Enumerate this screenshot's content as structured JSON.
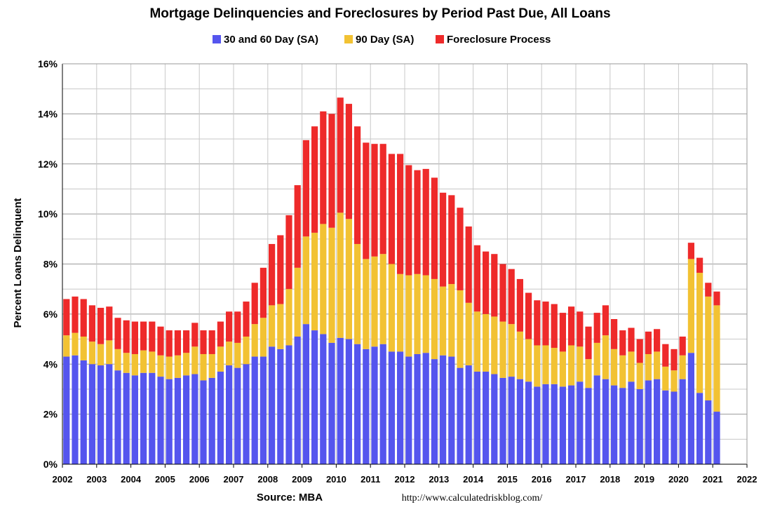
{
  "chart_data": {
    "type": "bar",
    "stacked": true,
    "title": "Mortgage Delinquencies and Foreclosures by Period Past Due, All Loans",
    "ylabel": "Percent Loans Delinquent",
    "xlabel": "",
    "source_label": "Source: MBA",
    "url": "http://www.calculatedriskblog.com/",
    "ylim": [
      0,
      16
    ],
    "xlim": [
      2002,
      2022
    ],
    "y_ticks": [
      "0%",
      "2%",
      "4%",
      "6%",
      "8%",
      "10%",
      "12%",
      "14%",
      "16%"
    ],
    "x_ticks": [
      "2002",
      "2003",
      "2004",
      "2005",
      "2006",
      "2007",
      "2008",
      "2009",
      "2010",
      "2011",
      "2012",
      "2013",
      "2014",
      "2015",
      "2016",
      "2017",
      "2018",
      "2019",
      "2020",
      "2021",
      "2022"
    ],
    "legend_position": "top-center",
    "grid": true,
    "x": [
      2002.0,
      2002.25,
      2002.5,
      2002.75,
      2003.0,
      2003.25,
      2003.5,
      2003.75,
      2004.0,
      2004.25,
      2004.5,
      2004.75,
      2005.0,
      2005.25,
      2005.5,
      2005.75,
      2006.0,
      2006.25,
      2006.5,
      2006.75,
      2007.0,
      2007.25,
      2007.5,
      2007.75,
      2008.0,
      2008.25,
      2008.5,
      2008.75,
      2009.0,
      2009.25,
      2009.5,
      2009.75,
      2010.0,
      2010.25,
      2010.5,
      2010.75,
      2011.0,
      2011.25,
      2011.5,
      2011.75,
      2012.0,
      2012.25,
      2012.5,
      2012.75,
      2013.0,
      2013.25,
      2013.5,
      2013.75,
      2014.0,
      2014.25,
      2014.5,
      2014.75,
      2015.0,
      2015.25,
      2015.5,
      2015.75,
      2016.0,
      2016.25,
      2016.5,
      2016.75,
      2017.0,
      2017.25,
      2017.5,
      2017.75,
      2018.0,
      2018.25,
      2018.5,
      2018.75,
      2019.0,
      2019.25,
      2019.5,
      2019.75,
      2020.0,
      2020.25,
      2020.5,
      2020.75,
      2021.0
    ],
    "series": [
      {
        "name": "30 and 60 Day (SA)",
        "color": "#5555ee",
        "values": [
          4.3,
          4.35,
          4.15,
          4.0,
          3.95,
          4.0,
          3.75,
          3.65,
          3.55,
          3.65,
          3.65,
          3.5,
          3.4,
          3.45,
          3.55,
          3.6,
          3.35,
          3.45,
          3.7,
          3.95,
          3.85,
          4.0,
          4.3,
          4.3,
          4.7,
          4.6,
          4.75,
          5.1,
          5.6,
          5.35,
          5.2,
          4.85,
          5.05,
          5.0,
          4.8,
          4.6,
          4.7,
          4.8,
          4.5,
          4.5,
          4.3,
          4.4,
          4.45,
          4.2,
          4.35,
          4.3,
          3.85,
          3.95,
          3.7,
          3.7,
          3.6,
          3.45,
          3.5,
          3.4,
          3.3,
          3.1,
          3.2,
          3.2,
          3.1,
          3.15,
          3.3,
          3.05,
          3.55,
          3.4,
          3.15,
          3.05,
          3.3,
          3.0,
          3.35,
          3.4,
          2.95,
          2.9,
          3.4,
          4.45,
          2.85,
          2.55,
          2.1
        ]
      },
      {
        "name": "90 Day (SA)",
        "color": "#f2c233",
        "values": [
          0.85,
          0.9,
          0.95,
          0.9,
          0.85,
          0.95,
          0.85,
          0.8,
          0.85,
          0.9,
          0.85,
          0.85,
          0.9,
          0.9,
          0.9,
          1.1,
          1.05,
          0.95,
          1.0,
          0.95,
          1.0,
          1.1,
          1.3,
          1.55,
          1.65,
          1.8,
          2.25,
          2.75,
          3.5,
          3.9,
          4.4,
          4.6,
          5.0,
          4.8,
          4.0,
          3.6,
          3.6,
          3.6,
          3.5,
          3.1,
          3.25,
          3.2,
          3.1,
          3.2,
          2.75,
          2.9,
          3.1,
          2.5,
          2.4,
          2.3,
          2.3,
          2.25,
          2.1,
          1.9,
          1.7,
          1.65,
          1.55,
          1.45,
          1.4,
          1.6,
          1.4,
          1.15,
          1.3,
          1.75,
          1.45,
          1.3,
          1.2,
          1.05,
          1.05,
          1.1,
          0.95,
          0.85,
          0.95,
          3.75,
          4.8,
          4.15,
          4.25
        ]
      },
      {
        "name": "Foreclosure Process",
        "color": "#ee2a2a",
        "values": [
          1.45,
          1.45,
          1.5,
          1.45,
          1.45,
          1.35,
          1.25,
          1.3,
          1.3,
          1.15,
          1.2,
          1.15,
          1.05,
          1.0,
          0.9,
          0.95,
          0.95,
          0.95,
          1.0,
          1.2,
          1.25,
          1.4,
          1.65,
          2.0,
          2.45,
          2.75,
          2.95,
          3.3,
          3.85,
          4.25,
          4.5,
          4.55,
          4.6,
          4.6,
          4.7,
          4.65,
          4.5,
          4.4,
          4.4,
          4.8,
          4.4,
          4.15,
          4.25,
          4.05,
          3.75,
          3.55,
          3.3,
          3.05,
          2.65,
          2.5,
          2.5,
          2.3,
          2.2,
          2.1,
          1.85,
          1.8,
          1.75,
          1.75,
          1.55,
          1.55,
          1.4,
          1.3,
          1.2,
          1.2,
          1.2,
          1.0,
          0.95,
          0.95,
          0.9,
          0.9,
          0.9,
          0.85,
          0.75,
          0.65,
          0.6,
          0.55,
          0.55
        ]
      }
    ]
  }
}
